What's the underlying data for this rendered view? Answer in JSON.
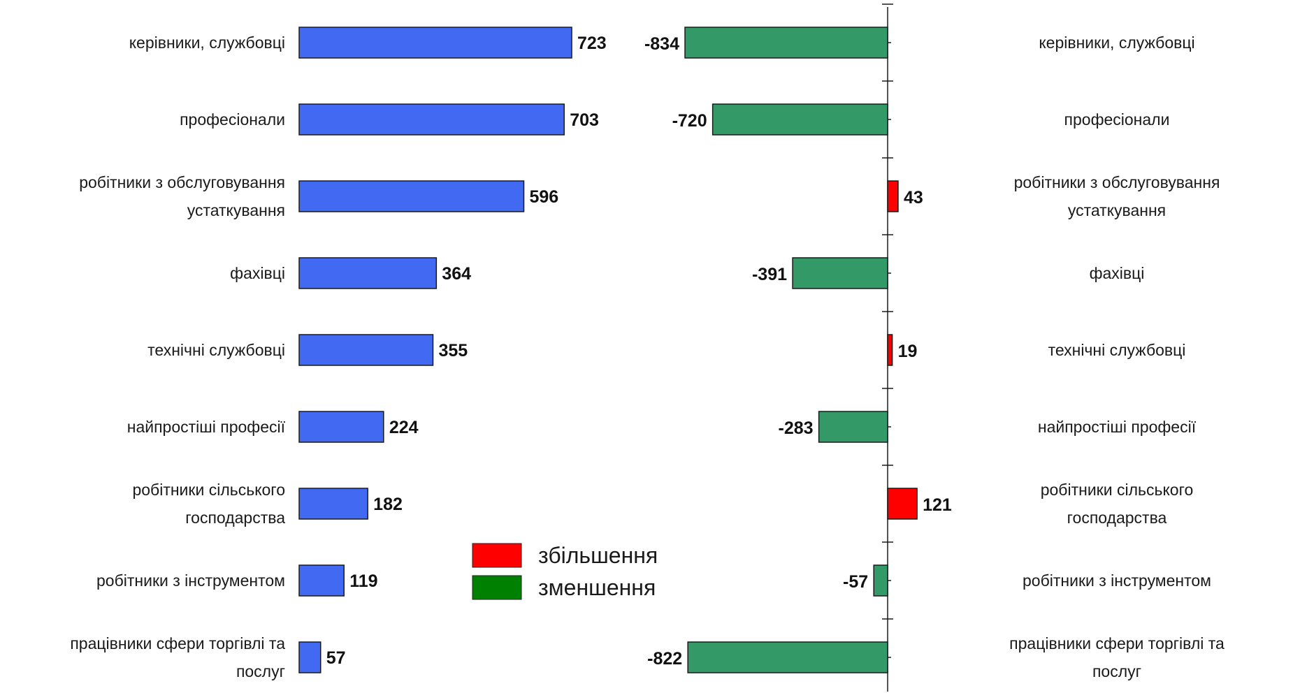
{
  "chart_data": [
    {
      "type": "bar",
      "orientation": "horizontal",
      "categories": [
        "керівники, службовці",
        "професіонали",
        "робітники з обслуговування устаткування",
        "фахівці",
        "технічні службовці",
        "найпростіші професії",
        "робітники сільського господарства",
        "робітники з інструментом",
        "працівники сфери торгівлі та послуг"
      ],
      "series": [
        {
          "values": [
            723,
            703,
            596,
            364,
            355,
            224,
            182,
            119,
            57
          ],
          "color": "#4169F2"
        }
      ],
      "xlim": [
        0,
        723
      ],
      "data_labels": true,
      "grid": false
    },
    {
      "type": "bar",
      "orientation": "horizontal",
      "categories": [
        "керівники, службовці",
        "професіонали",
        "робітники з обслуговування устаткування",
        "фахівці",
        "технічні службовці",
        "найпростіші професії",
        "робітники сільського господарства",
        "робітники з інструментом",
        "працівники сфери торгівлі та послуг"
      ],
      "series": [
        {
          "values": [
            -834,
            -720,
            43,
            -391,
            19,
            -283,
            121,
            -57,
            -822
          ]
        }
      ],
      "xlim": [
        -834,
        121
      ],
      "colors": {
        "increase": "#FF0000",
        "decrease": "#339966"
      },
      "data_labels": true,
      "grid": false,
      "legend": {
        "position": "bottom-center",
        "items": [
          {
            "label": "збільшення",
            "color": "#FF0000"
          },
          {
            "label": "зменшення",
            "color": "#008000"
          }
        ]
      }
    }
  ]
}
